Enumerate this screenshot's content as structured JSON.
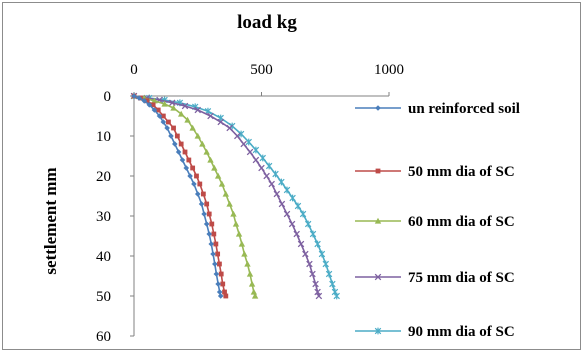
{
  "chart_data": {
    "type": "line",
    "title": "load kg",
    "xlabel": "load kg",
    "ylabel": "settlement mm",
    "x_axis_position": "top",
    "y_reversed": true,
    "xlim": [
      0,
      1000
    ],
    "ylim": [
      0,
      60
    ],
    "x_ticks": [
      "0",
      "500",
      "1000"
    ],
    "y_ticks": [
      "0",
      "10",
      "20",
      "30",
      "40",
      "50",
      "60"
    ],
    "grid": false,
    "legend_position": "right",
    "series": [
      {
        "name": "un reinforced soil",
        "color": "#4a7ebb",
        "marker": "diamond",
        "points": [
          [
            0,
            0
          ],
          [
            20,
            0.5
          ],
          [
            40,
            1.2
          ],
          [
            60,
            2.2
          ],
          [
            80,
            3.5
          ],
          [
            100,
            5
          ],
          [
            115,
            6.5
          ],
          [
            130,
            8
          ],
          [
            145,
            10
          ],
          [
            160,
            12
          ],
          [
            175,
            14
          ],
          [
            190,
            16
          ],
          [
            205,
            18
          ],
          [
            220,
            20
          ],
          [
            235,
            22
          ],
          [
            250,
            24.5
          ],
          [
            265,
            27
          ],
          [
            275,
            29.5
          ],
          [
            285,
            32
          ],
          [
            295,
            34.5
          ],
          [
            303,
            37
          ],
          [
            310,
            39.5
          ],
          [
            317,
            42
          ],
          [
            323,
            44.5
          ],
          [
            330,
            47
          ],
          [
            336,
            49
          ],
          [
            340,
            50
          ]
        ]
      },
      {
        "name": "50 mm dia of SC",
        "color": "#be4b48",
        "marker": "square",
        "points": [
          [
            0,
            0
          ],
          [
            25,
            0.5
          ],
          [
            50,
            1.2
          ],
          [
            75,
            2.2
          ],
          [
            95,
            3.5
          ],
          [
            115,
            5
          ],
          [
            135,
            6.5
          ],
          [
            155,
            8
          ],
          [
            170,
            10
          ],
          [
            185,
            12
          ],
          [
            200,
            14
          ],
          [
            215,
            16
          ],
          [
            230,
            18
          ],
          [
            245,
            20
          ],
          [
            258,
            22
          ],
          [
            272,
            24.5
          ],
          [
            285,
            27
          ],
          [
            295,
            29.5
          ],
          [
            305,
            32
          ],
          [
            313,
            34.5
          ],
          [
            321,
            37
          ],
          [
            328,
            39.5
          ],
          [
            335,
            42
          ],
          [
            342,
            44.5
          ],
          [
            348,
            47
          ],
          [
            355,
            49
          ],
          [
            360,
            50
          ]
        ]
      },
      {
        "name": "60 mm dia of SC",
        "color": "#98b954",
        "marker": "triangle",
        "points": [
          [
            0,
            0
          ],
          [
            40,
            0.5
          ],
          [
            80,
            1.2
          ],
          [
            120,
            2
          ],
          [
            155,
            3
          ],
          [
            185,
            4.5
          ],
          [
            210,
            6
          ],
          [
            230,
            8
          ],
          [
            250,
            10
          ],
          [
            268,
            12
          ],
          [
            285,
            14
          ],
          [
            300,
            16
          ],
          [
            315,
            18
          ],
          [
            330,
            20
          ],
          [
            345,
            22
          ],
          [
            360,
            24.5
          ],
          [
            375,
            27
          ],
          [
            390,
            29.5
          ],
          [
            400,
            32
          ],
          [
            412,
            34.5
          ],
          [
            423,
            37
          ],
          [
            433,
            39.5
          ],
          [
            445,
            42
          ],
          [
            455,
            44.5
          ],
          [
            463,
            47
          ],
          [
            470,
            49
          ],
          [
            475,
            50
          ]
        ]
      },
      {
        "name": "75 mm dia of SC",
        "color": "#7d60a0",
        "marker": "x",
        "points": [
          [
            0,
            0
          ],
          [
            50,
            0.5
          ],
          [
            100,
            1
          ],
          [
            150,
            1.7
          ],
          [
            200,
            2.5
          ],
          [
            250,
            3.5
          ],
          [
            300,
            5
          ],
          [
            340,
            6.5
          ],
          [
            375,
            8
          ],
          [
            405,
            10
          ],
          [
            430,
            12
          ],
          [
            455,
            14
          ],
          [
            478,
            16
          ],
          [
            500,
            18
          ],
          [
            520,
            20
          ],
          [
            540,
            22
          ],
          [
            560,
            24.5
          ],
          [
            580,
            27
          ],
          [
            600,
            29.5
          ],
          [
            620,
            32
          ],
          [
            638,
            34.5
          ],
          [
            655,
            37
          ],
          [
            672,
            39.5
          ],
          [
            688,
            42
          ],
          [
            700,
            44.5
          ],
          [
            712,
            47
          ],
          [
            720,
            49
          ],
          [
            725,
            50
          ]
        ]
      },
      {
        "name": "90 mm dia of SC",
        "color": "#4bacc6",
        "marker": "star",
        "points": [
          [
            0,
            0
          ],
          [
            60,
            0.5
          ],
          [
            120,
            1
          ],
          [
            180,
            1.7
          ],
          [
            240,
            2.7
          ],
          [
            290,
            3.8
          ],
          [
            340,
            5.5
          ],
          [
            385,
            7.5
          ],
          [
            420,
            9.5
          ],
          [
            450,
            11.5
          ],
          [
            478,
            13.5
          ],
          [
            505,
            15.5
          ],
          [
            530,
            17.5
          ],
          [
            555,
            19.5
          ],
          [
            578,
            21.5
          ],
          [
            600,
            23.5
          ],
          [
            622,
            25.5
          ],
          [
            643,
            27.5
          ],
          [
            663,
            29.5
          ],
          [
            683,
            32
          ],
          [
            702,
            34.5
          ],
          [
            720,
            37
          ],
          [
            737,
            39.5
          ],
          [
            752,
            42
          ],
          [
            765,
            44.5
          ],
          [
            778,
            47
          ],
          [
            788,
            49
          ],
          [
            795,
            50
          ]
        ]
      }
    ]
  }
}
